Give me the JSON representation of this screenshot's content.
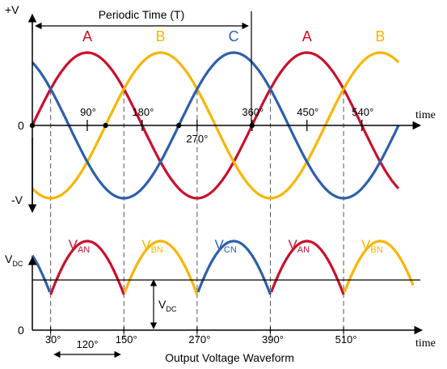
{
  "top": {
    "v_pos": "+V",
    "v_neg": "-V",
    "zero": "0",
    "time_label": "time",
    "period_label": "Periodic Time (T)",
    "angle_labels": [
      "90°",
      "180°",
      "270°",
      "360°",
      "450°",
      "540°"
    ],
    "phase_labels": [
      "A",
      "B",
      "C",
      "A",
      "B"
    ]
  },
  "bottom": {
    "vdc_label": "V",
    "vdc_sub": "DC",
    "zero": "0",
    "time_label": "time",
    "angle_labels": [
      "30°",
      "150°",
      "270°",
      "390°",
      "510°"
    ],
    "span_label": "120°",
    "caption": "Output Voltage Waveform",
    "lobes": [
      {
        "main": "V",
        "sub": "AN"
      },
      {
        "main": "V",
        "sub": "BN"
      },
      {
        "main": "V",
        "sub": "CN"
      },
      {
        "main": "V",
        "sub": "AN"
      },
      {
        "main": "V",
        "sub": "BN"
      }
    ]
  },
  "colors": {
    "phase_a": "#c8102e",
    "phase_b": "#f7b500",
    "phase_c": "#2f5fa8",
    "axis": "#000000",
    "guide": "#555555"
  }
}
